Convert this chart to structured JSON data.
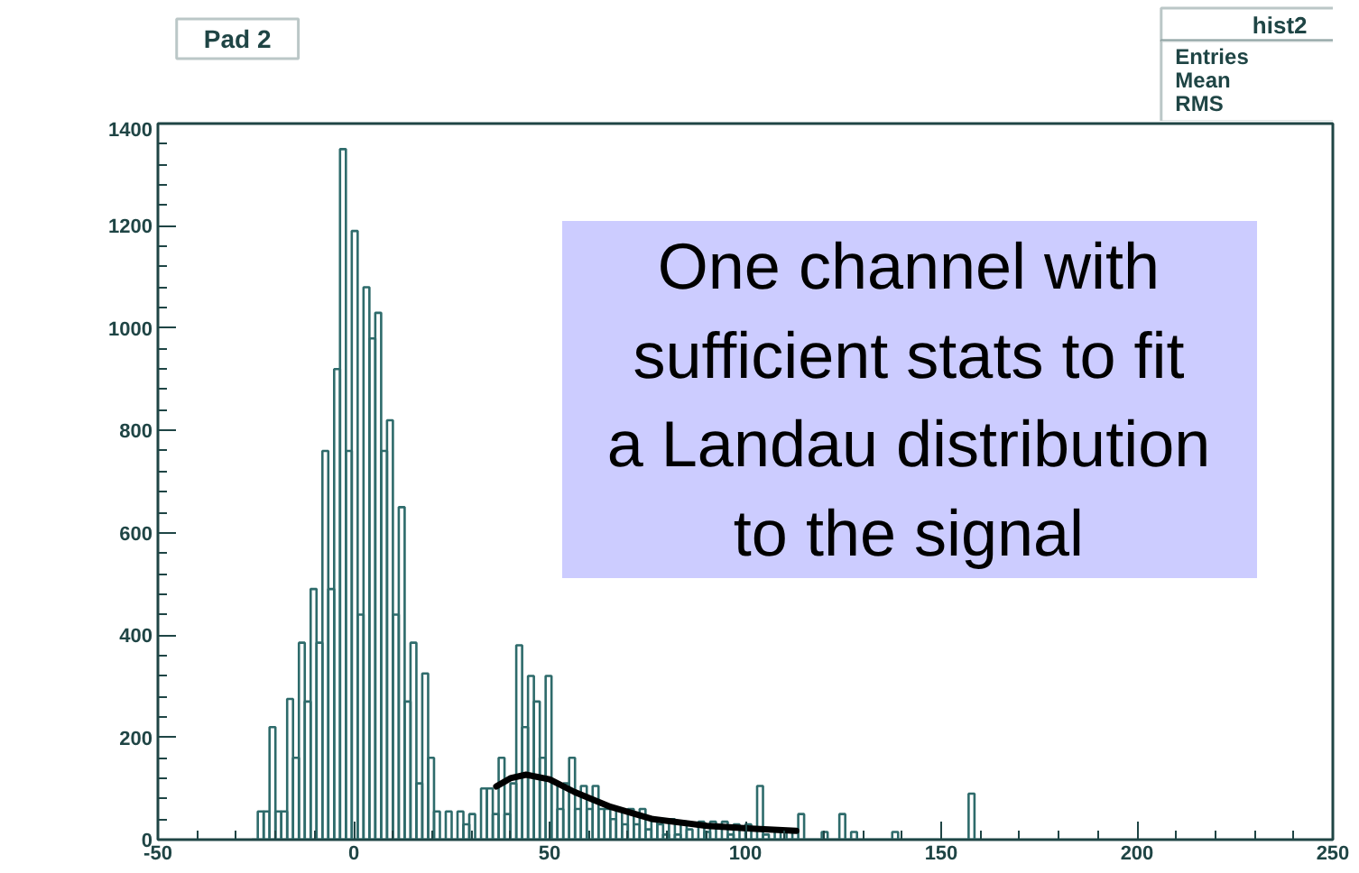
{
  "chart_data": {
    "type": "histogram",
    "title": "Pad 2",
    "annotations": [
      "One channel with\nsufficient stats to fit\na Landau distribution\nto the signal",
      "hist2",
      "Entries",
      "Mean",
      "RMS"
    ],
    "xlim": [
      -50,
      250
    ],
    "ylim": [
      0,
      1400
    ],
    "xticks": [
      -50,
      0,
      50,
      100,
      150,
      200,
      250
    ],
    "yticks": [
      0,
      200,
      400,
      600,
      800,
      1000,
      1200,
      1400
    ],
    "grid": false,
    "series": [
      {
        "color": "#2e6b6b",
        "bins": [
          -26,
          -24.5,
          -23,
          -21.5,
          -20,
          -18.5,
          -17,
          -15.5,
          -14,
          -12.5,
          -11,
          -9.5,
          -8,
          -6.5,
          -5,
          -3.5,
          -2,
          -0.5,
          1,
          2.5,
          4,
          5.5,
          7,
          8.5,
          10,
          11.5,
          13,
          14.5,
          16,
          17.5,
          19,
          20.5,
          22,
          23.5,
          25,
          26.5,
          28,
          29.5,
          31,
          32.5,
          34,
          35.5,
          37,
          38.5,
          40,
          41.5,
          43,
          44.5,
          46,
          47.5,
          49,
          50.5,
          52,
          53.5,
          55,
          56.5,
          58,
          59.5,
          61,
          62.5,
          64,
          65.5,
          67,
          68.5,
          70,
          71.5,
          73,
          74.5,
          76,
          77.5,
          79,
          80.5,
          82,
          83.5,
          85,
          86.5,
          88,
          89.5,
          91,
          92.5,
          94,
          95.5,
          97,
          98.5,
          100,
          101.5,
          103,
          104.5,
          106,
          107.5,
          109,
          110.5,
          112,
          113.5,
          115,
          116.5,
          118,
          119.5,
          121,
          122.5,
          124,
          125.5,
          127,
          128.5,
          130,
          131.5,
          133,
          134.5,
          136,
          137.5,
          139,
          140.5,
          142,
          143.5,
          145,
          146.5,
          148,
          149.5,
          151,
          152.5,
          154,
          155.5,
          157,
          158.5,
          160
        ],
        "values": [
          0,
          55,
          55,
          220,
          55,
          55,
          275,
          160,
          385,
          270,
          490,
          385,
          760,
          490,
          920,
          1350,
          760,
          1190,
          440,
          1080,
          980,
          1030,
          760,
          820,
          440,
          650,
          270,
          385,
          110,
          325,
          160,
          55,
          0,
          55,
          0,
          55,
          30,
          50,
          0,
          100,
          100,
          50,
          160,
          50,
          110,
          380,
          220,
          320,
          270,
          160,
          320,
          110,
          60,
          110,
          160,
          60,
          105,
          60,
          105,
          60,
          60,
          40,
          60,
          30,
          60,
          30,
          60,
          20,
          40,
          30,
          10,
          40,
          10,
          35,
          20,
          0,
          35,
          15,
          35,
          0,
          35,
          10,
          30,
          0,
          30,
          0,
          105,
          10,
          0,
          20,
          0,
          15,
          0,
          50,
          0,
          0,
          0,
          15,
          0,
          0,
          50,
          0,
          15,
          0,
          0,
          0,
          0,
          0,
          0,
          15,
          0,
          0,
          0,
          0,
          0,
          0,
          0,
          0,
          0,
          0,
          0,
          0,
          90,
          0
        ]
      },
      {
        "type": "line",
        "color": "#000000",
        "x": [
          36.4,
          40,
          44,
          50,
          56.4,
          65.6,
          76.4,
          90.2,
          102.5,
          113
        ],
        "values": [
          104,
          120,
          127,
          118,
          93,
          64,
          40,
          27,
          21,
          17
        ]
      }
    ]
  }
}
